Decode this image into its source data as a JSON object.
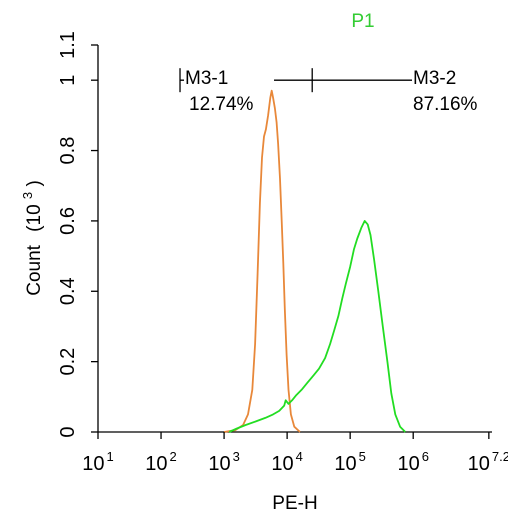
{
  "chart_data": {
    "type": "histogram",
    "title": "P1",
    "title_color": "#33cc33",
    "xlabel": "PE-H",
    "ylabel": "Count",
    "ylabel_unit": "(10",
    "ylabel_unit_exp": "3",
    "ylabel_unit_close": ")",
    "x_scale": "log",
    "xlim": [
      10,
      17782794
    ],
    "ylim": [
      0,
      1.1
    ],
    "x_ticks": [
      {
        "base": "10",
        "exp": "1",
        "value": 10
      },
      {
        "base": "10",
        "exp": "2",
        "value": 100
      },
      {
        "base": "10",
        "exp": "3",
        "value": 1000
      },
      {
        "base": "10",
        "exp": "4",
        "value": 10000
      },
      {
        "base": "10",
        "exp": "5",
        "value": 100000
      },
      {
        "base": "10",
        "exp": "6",
        "value": 1000000
      },
      {
        "base": "10",
        "exp": "7.2",
        "value": 15848932
      }
    ],
    "y_ticks": [
      {
        "label": "0",
        "value": 0
      },
      {
        "label": "0.2",
        "value": 0.2
      },
      {
        "label": "0.4",
        "value": 0.4
      },
      {
        "label": "0.6",
        "value": 0.6
      },
      {
        "label": "0.8",
        "value": 0.8
      },
      {
        "label": "1",
        "value": 1.0
      },
      {
        "label": "1.1",
        "value": 1.1
      }
    ],
    "grid": false,
    "series": [
      {
        "color": "#e8883a",
        "points": [
          [
            1000,
            0
          ],
          [
            1500,
            0.005
          ],
          [
            2000,
            0.02
          ],
          [
            2400,
            0.05
          ],
          [
            2800,
            0.12
          ],
          [
            3100,
            0.25
          ],
          [
            3400,
            0.45
          ],
          [
            3700,
            0.65
          ],
          [
            4000,
            0.78
          ],
          [
            4300,
            0.84
          ],
          [
            4600,
            0.86
          ],
          [
            5000,
            0.9
          ],
          [
            5400,
            0.95
          ],
          [
            5700,
            0.97
          ],
          [
            6000,
            0.95
          ],
          [
            6400,
            0.92
          ],
          [
            6800,
            0.88
          ],
          [
            7200,
            0.82
          ],
          [
            7700,
            0.72
          ],
          [
            8200,
            0.6
          ],
          [
            8700,
            0.48
          ],
          [
            9200,
            0.35
          ],
          [
            9800,
            0.22
          ],
          [
            10500,
            0.12
          ],
          [
            11500,
            0.05
          ],
          [
            13000,
            0.015
          ],
          [
            16000,
            0
          ]
        ]
      },
      {
        "color": "#22dd22",
        "points": [
          [
            1200,
            0
          ],
          [
            1600,
            0.01
          ],
          [
            2200,
            0.02
          ],
          [
            3200,
            0.03
          ],
          [
            4500,
            0.04
          ],
          [
            6000,
            0.05
          ],
          [
            7500,
            0.06
          ],
          [
            9000,
            0.075
          ],
          [
            9500,
            0.09
          ],
          [
            10500,
            0.08
          ],
          [
            12000,
            0.09
          ],
          [
            14000,
            0.105
          ],
          [
            17000,
            0.12
          ],
          [
            21000,
            0.14
          ],
          [
            26000,
            0.16
          ],
          [
            32000,
            0.18
          ],
          [
            40000,
            0.21
          ],
          [
            48000,
            0.25
          ],
          [
            56000,
            0.29
          ],
          [
            65000,
            0.33
          ],
          [
            75000,
            0.38
          ],
          [
            85000,
            0.42
          ],
          [
            100000,
            0.47
          ],
          [
            115000,
            0.52
          ],
          [
            130000,
            0.55
          ],
          [
            150000,
            0.58
          ],
          [
            170000,
            0.6
          ],
          [
            190000,
            0.59
          ],
          [
            210000,
            0.56
          ],
          [
            240000,
            0.49
          ],
          [
            280000,
            0.4
          ],
          [
            330000,
            0.3
          ],
          [
            390000,
            0.2
          ],
          [
            450000,
            0.11
          ],
          [
            520000,
            0.05
          ],
          [
            620000,
            0.015
          ],
          [
            750000,
            0
          ]
        ]
      }
    ],
    "gates": [
      {
        "name": "M3-1",
        "percent": "12.74%",
        "x_start": 200,
        "x_end": 25000,
        "y": 1.0
      },
      {
        "name": "M3-2",
        "percent": "87.16%",
        "x_start": 25000,
        "x_end": 17782794,
        "y": 1.0
      }
    ]
  }
}
